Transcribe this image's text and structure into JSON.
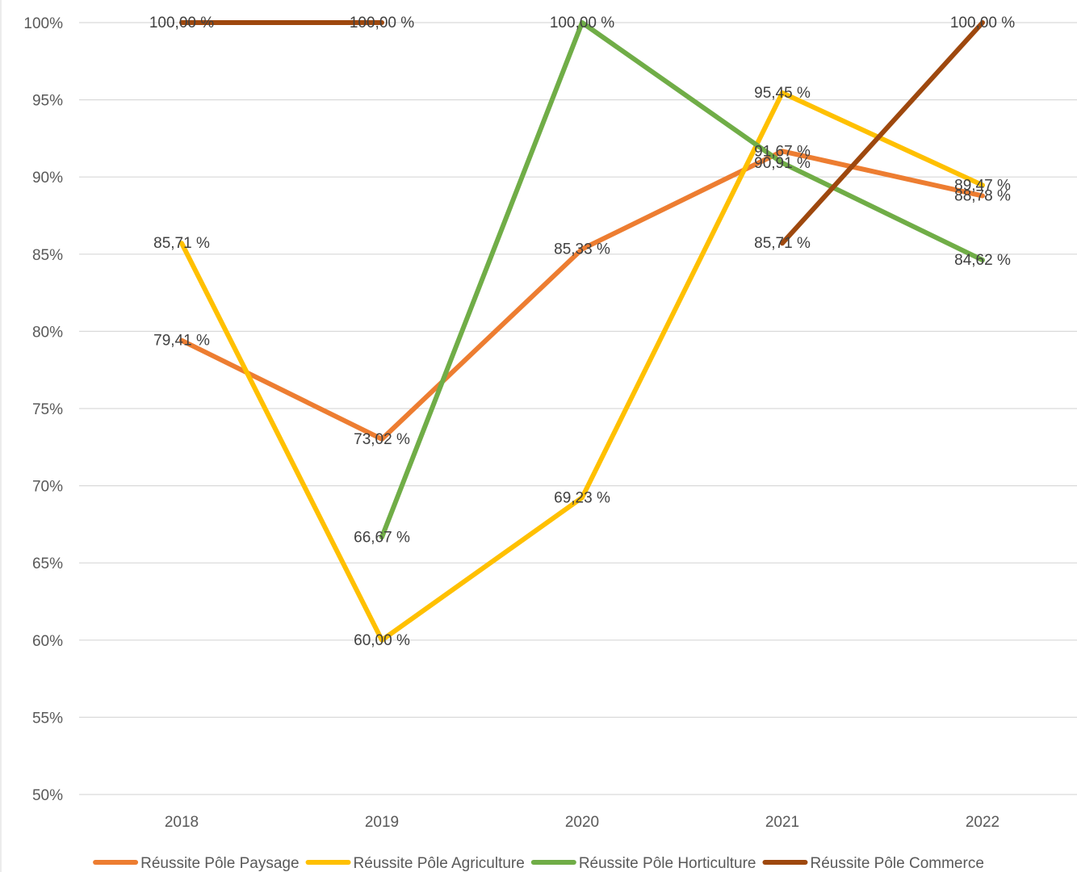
{
  "chart_data": {
    "type": "line",
    "title": "",
    "xlabel": "",
    "ylabel": "",
    "categories": [
      "2018",
      "2019",
      "2020",
      "2021",
      "2022"
    ],
    "ylim": [
      50,
      100
    ],
    "y_ticks": [
      "50%",
      "55%",
      "60%",
      "65%",
      "70%",
      "75%",
      "80%",
      "85%",
      "90%",
      "95%",
      "100%"
    ],
    "grid": true,
    "legend_position": "bottom",
    "series": [
      {
        "name": "Réussite Pôle Paysage",
        "color": "#ED7D31",
        "values": [
          79.41,
          73.02,
          85.33,
          91.67,
          88.78
        ],
        "labels": [
          "79,41 %",
          "73,02 %",
          "85,33 %",
          "91,67 %",
          "88,78 %"
        ]
      },
      {
        "name": "Réussite Pôle Agriculture",
        "color": "#FFC000",
        "values": [
          85.71,
          60.0,
          69.23,
          95.45,
          89.47
        ],
        "labels": [
          "85,71 %",
          "60,00 %",
          "69,23 %",
          "95,45 %",
          "89,47 %"
        ]
      },
      {
        "name": "Réussite Pôle Horticulture",
        "color": "#70AD47",
        "values": [
          null,
          66.67,
          100.0,
          90.91,
          84.62
        ],
        "labels": [
          "",
          "66,67 %",
          "100,00 %",
          "90,91 %",
          "84,62 %"
        ]
      },
      {
        "name": "Réussite Pôle Commerce",
        "color": "#9E480E",
        "values": [
          100.0,
          100.0,
          null,
          85.71,
          100.0
        ],
        "labels": [
          "100,00 %",
          "100,00 %",
          "",
          "85,71 %",
          "100,00 %"
        ]
      }
    ]
  }
}
